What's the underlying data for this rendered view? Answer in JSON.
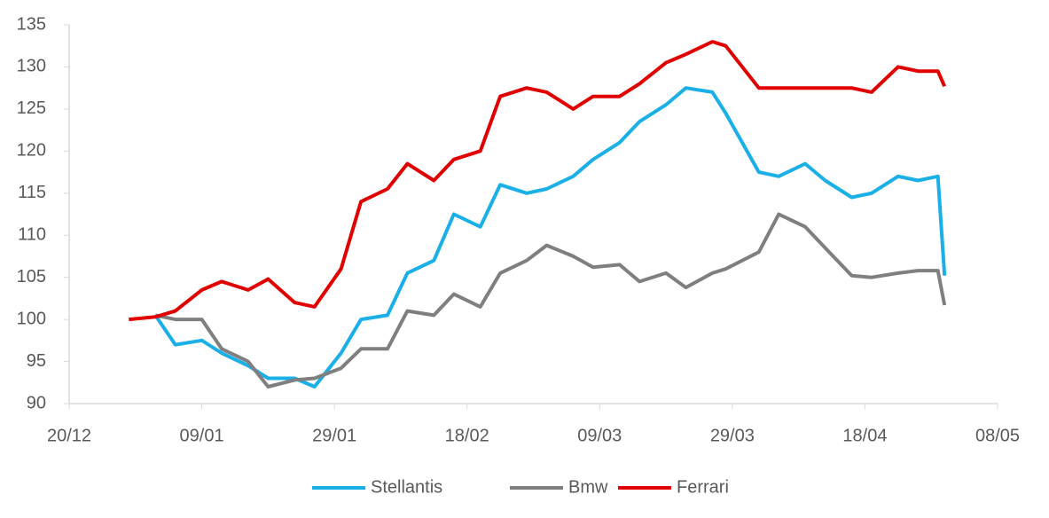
{
  "chart_data": {
    "type": "line",
    "x": [
      "29/12",
      "02/01",
      "05/01",
      "09/01",
      "12/01",
      "16/01",
      "19/01",
      "23/01",
      "26/01",
      "30/01",
      "02/02",
      "06/02",
      "09/02",
      "13/02",
      "16/02",
      "20/02",
      "23/02",
      "27/02",
      "01/03",
      "05/03",
      "08/03",
      "12/03",
      "15/03",
      "19/03",
      "22/03",
      "26/03",
      "28/03",
      "02/04",
      "05/04",
      "09/04",
      "12/04",
      "16/04",
      "19/04",
      "23/04",
      "26/04",
      "29/04",
      "30/04"
    ],
    "series": [
      {
        "name": "Stellantis",
        "color": "#1aafe6",
        "values": [
          null,
          100.5,
          97,
          97.5,
          96,
          94.5,
          93,
          93,
          92,
          96,
          100,
          100.5,
          105.5,
          107,
          112.5,
          111,
          116,
          115,
          115.5,
          117,
          119,
          121,
          123.5,
          125.5,
          127.5,
          127,
          124.5,
          117.5,
          117,
          118.5,
          116.5,
          114.5,
          115,
          117,
          116.5,
          117,
          105.2
        ]
      },
      {
        "name": "Bmw",
        "color": "#7f7f7f",
        "values": [
          null,
          100.5,
          100,
          100,
          96.5,
          95,
          92,
          92.8,
          93,
          94.2,
          96.5,
          96.5,
          101,
          100.5,
          103,
          101.5,
          105.5,
          107,
          108.8,
          107.5,
          106.2,
          106.5,
          104.5,
          105.5,
          103.8,
          105.5,
          106,
          108,
          112.5,
          111,
          108.5,
          105.2,
          105,
          105.5,
          105.8,
          105.8,
          101.7
        ]
      },
      {
        "name": "Ferrari",
        "color": "#e00000",
        "values": [
          100,
          100.3,
          101,
          103.5,
          104.5,
          103.5,
          104.8,
          102,
          101.5,
          106,
          114,
          115.5,
          118.5,
          116.5,
          119,
          120,
          126.5,
          127.5,
          127,
          125,
          126.5,
          126.5,
          128,
          130.5,
          131.5,
          133,
          132.5,
          127.5,
          127.5,
          127.5,
          127.5,
          127.5,
          127,
          130,
          129.5,
          129.5,
          127.7
        ]
      }
    ],
    "xlim": [
      "20/12",
      "08/05"
    ],
    "xticks": [
      "20/12",
      "09/01",
      "29/01",
      "18/02",
      "09/03",
      "29/03",
      "18/04",
      "08/05"
    ],
    "ylim": [
      90,
      135
    ],
    "yticks": [
      90,
      95,
      100,
      105,
      110,
      115,
      120,
      125,
      130,
      135
    ],
    "legend": "bottom"
  }
}
